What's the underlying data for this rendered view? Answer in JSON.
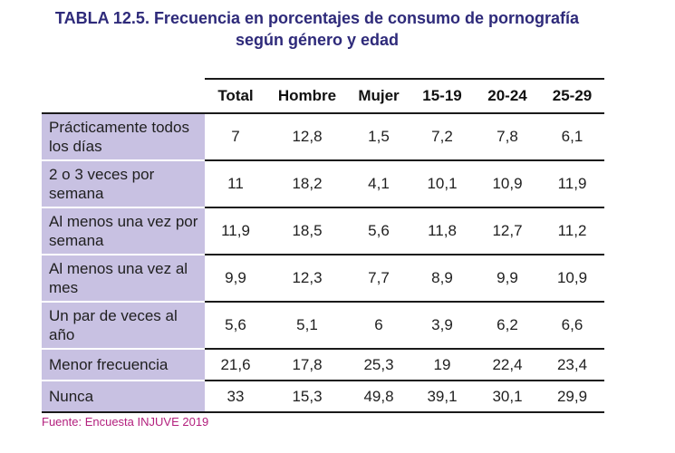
{
  "title": {
    "line1": "TABLA 12.5. Frecuencia en porcentajes de consumo de pornografía",
    "line2": "según género y edad"
  },
  "table": {
    "headers": [
      "",
      "Total",
      "Hombre",
      "Mujer",
      "15-19",
      "20-24",
      "25-29"
    ],
    "rows": [
      {
        "label": "Prácticamente todos los días",
        "values": [
          "7",
          "12,8",
          "1,5",
          "7,2",
          "7,8",
          "6,1"
        ]
      },
      {
        "label": "2 o 3 veces por semana",
        "values": [
          "11",
          "18,2",
          "4,1",
          "10,1",
          "10,9",
          "11,9"
        ]
      },
      {
        "label": "Al menos una vez por semana",
        "values": [
          "11,9",
          "18,5",
          "5,6",
          "11,8",
          "12,7",
          "11,2"
        ]
      },
      {
        "label": "Al menos una vez al mes",
        "values": [
          "9,9",
          "12,3",
          "7,7",
          "8,9",
          "9,9",
          "10,9"
        ]
      },
      {
        "label": "Un par de veces al año",
        "values": [
          "5,6",
          "5,1",
          "6",
          "3,9",
          "6,2",
          "6,6"
        ]
      },
      {
        "label": "Menor frecuencia",
        "values": [
          "21,6",
          "17,8",
          "25,3",
          "19",
          "22,4",
          "23,4"
        ]
      },
      {
        "label": "Nunca",
        "values": [
          "33",
          "15,3",
          "49,8",
          "39,1",
          "30,1",
          "29,9"
        ]
      }
    ]
  },
  "source": "Fuente: Encuesta INJUVE 2019",
  "colors": {
    "title": "#2e2a7a",
    "label_bg": "#c8c1e2",
    "source": "#b3207e"
  }
}
